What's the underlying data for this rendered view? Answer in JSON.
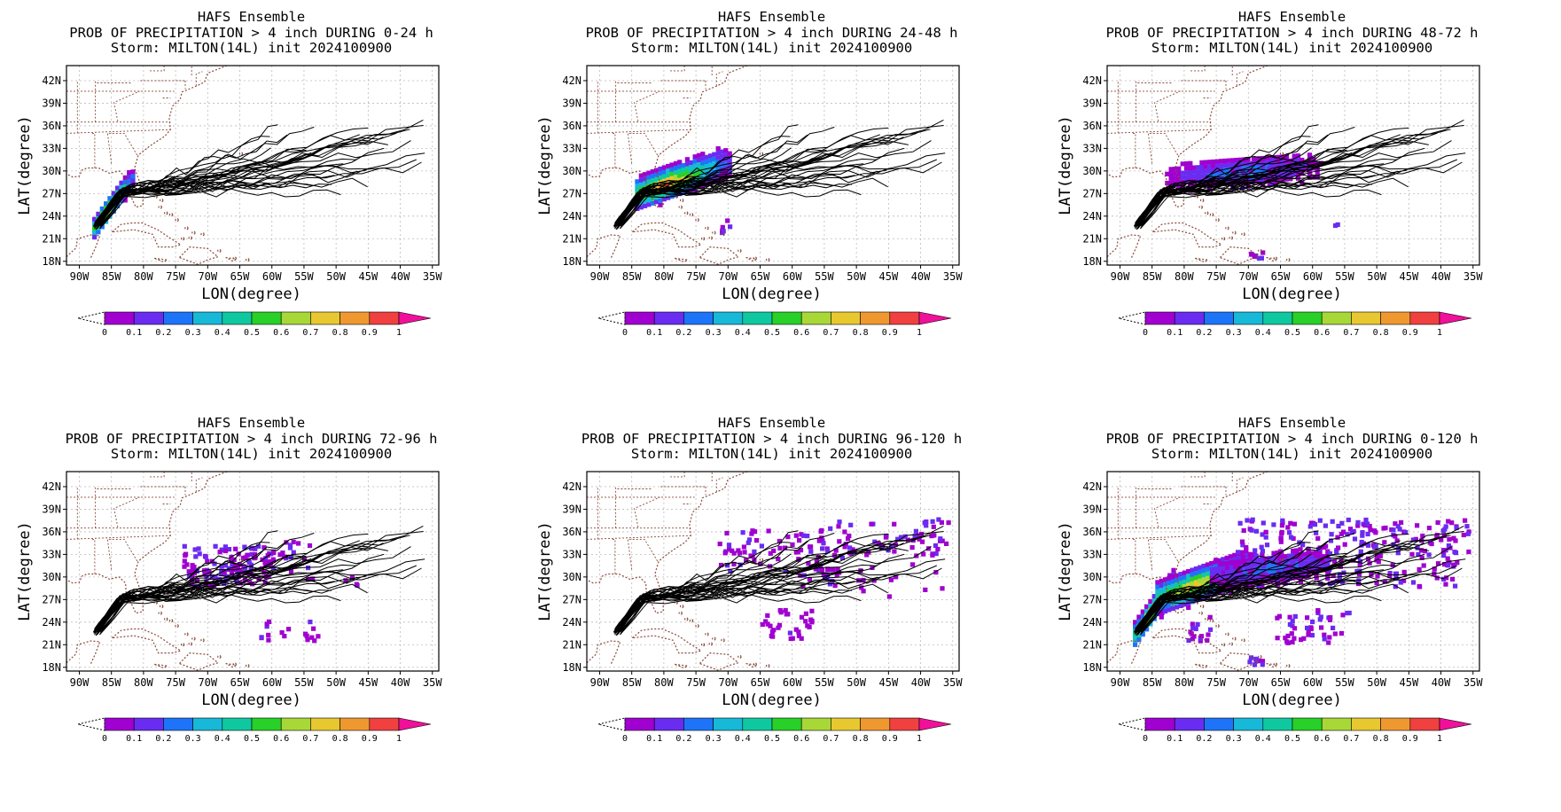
{
  "panels": [
    {
      "line1": "HAFS Ensemble",
      "line2": "PROB OF PRECIPITATION > 4 inch DURING  0-24 h",
      "line3": "Storm: MILTON(14L) init 2024100900",
      "swath": "d1"
    },
    {
      "line1": "HAFS Ensemble",
      "line2": "PROB OF PRECIPITATION > 4 inch DURING 24-48 h",
      "line3": "Storm: MILTON(14L) init 2024100900",
      "swath": "d2"
    },
    {
      "line1": "HAFS Ensemble",
      "line2": "PROB OF PRECIPITATION > 4 inch DURING 48-72 h",
      "line3": "Storm: MILTON(14L) init 2024100900",
      "swath": "d3"
    },
    {
      "line1": "HAFS Ensemble",
      "line2": "PROB OF PRECIPITATION > 4 inch DURING 72-96 h",
      "line3": "Storm: MILTON(14L) init 2024100900",
      "swath": "d4"
    },
    {
      "line1": "HAFS Ensemble",
      "line2": "PROB OF PRECIPITATION > 4 inch DURING 96-120 h",
      "line3": "Storm: MILTON(14L) init 2024100900",
      "swath": "d5"
    },
    {
      "line1": "HAFS Ensemble",
      "line2": "PROB OF PRECIPITATION > 4 inch DURING 0-120 h",
      "line3": "Storm: MILTON(14L) init 2024100900",
      "swath": "all"
    }
  ],
  "axes": {
    "xlabel": "LON(degree)",
    "ylabel": "LAT(degree)",
    "lon_ticks": [
      "90W",
      "85W",
      "80W",
      "75W",
      "70W",
      "65W",
      "60W",
      "55W",
      "50W",
      "45W",
      "40W",
      "35W"
    ],
    "lat_ticks": [
      "42N",
      "39N",
      "36N",
      "33N",
      "30N",
      "27N",
      "24N",
      "21N",
      "18N"
    ]
  },
  "colorbar": {
    "labels": [
      "0",
      "0.1",
      "0.2",
      "0.3",
      "0.4",
      "0.5",
      "0.6",
      "0.7",
      "0.8",
      "0.9",
      "1"
    ],
    "colors": [
      "#a000d0",
      "#6a2cf0",
      "#1e74f8",
      "#18b8d8",
      "#10c8a0",
      "#28d028",
      "#a8d838",
      "#e8c830",
      "#f09830",
      "#f04040"
    ],
    "over_color": "#f0109a"
  }
}
